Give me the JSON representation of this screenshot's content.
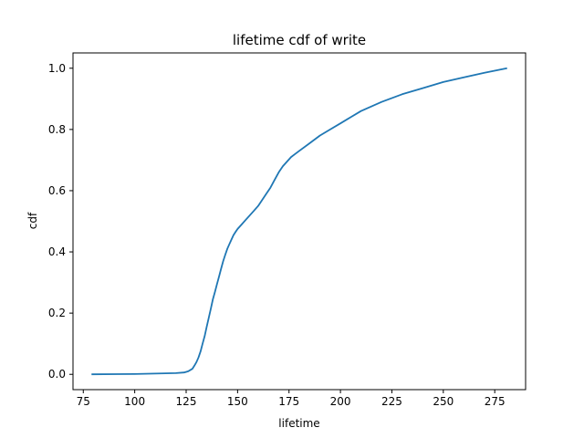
{
  "chart_data": {
    "type": "line",
    "title": "lifetime cdf of write",
    "xlabel": "lifetime",
    "ylabel": "cdf",
    "xlim": [
      70,
      290
    ],
    "ylim": [
      -0.05,
      1.05
    ],
    "x_ticks": [
      75,
      100,
      125,
      150,
      175,
      200,
      225,
      250,
      275
    ],
    "y_ticks": [
      0.0,
      0.2,
      0.4,
      0.6,
      0.8,
      1.0
    ],
    "x_tick_labels": [
      "75",
      "100",
      "125",
      "150",
      "175",
      "200",
      "225",
      "250",
      "275"
    ],
    "y_tick_labels": [
      "0.0",
      "0.2",
      "0.4",
      "0.6",
      "0.8",
      "1.0"
    ],
    "grid": false,
    "series": [
      {
        "color": "#1f77b4",
        "x": [
          79,
          100,
          120,
          124,
          126,
          128,
          129,
          130,
          131,
          132,
          133,
          134,
          135,
          136,
          137,
          138,
          139,
          140,
          141,
          142,
          143,
          144,
          145,
          146,
          147,
          148,
          149,
          150,
          152,
          154,
          156,
          158,
          160,
          162,
          164,
          166,
          168,
          170,
          172,
          174,
          176,
          178,
          180,
          185,
          190,
          195,
          200,
          205,
          210,
          220,
          230,
          240,
          250,
          260,
          270,
          281
        ],
        "y": [
          0.0,
          0.001,
          0.004,
          0.006,
          0.01,
          0.018,
          0.028,
          0.04,
          0.055,
          0.075,
          0.1,
          0.125,
          0.155,
          0.185,
          0.215,
          0.245,
          0.27,
          0.295,
          0.32,
          0.345,
          0.37,
          0.39,
          0.41,
          0.425,
          0.44,
          0.455,
          0.465,
          0.475,
          0.49,
          0.505,
          0.52,
          0.535,
          0.55,
          0.57,
          0.59,
          0.61,
          0.635,
          0.66,
          0.68,
          0.695,
          0.71,
          0.72,
          0.73,
          0.755,
          0.78,
          0.8,
          0.82,
          0.84,
          0.86,
          0.89,
          0.915,
          0.935,
          0.955,
          0.97,
          0.985,
          1.0
        ]
      }
    ]
  }
}
